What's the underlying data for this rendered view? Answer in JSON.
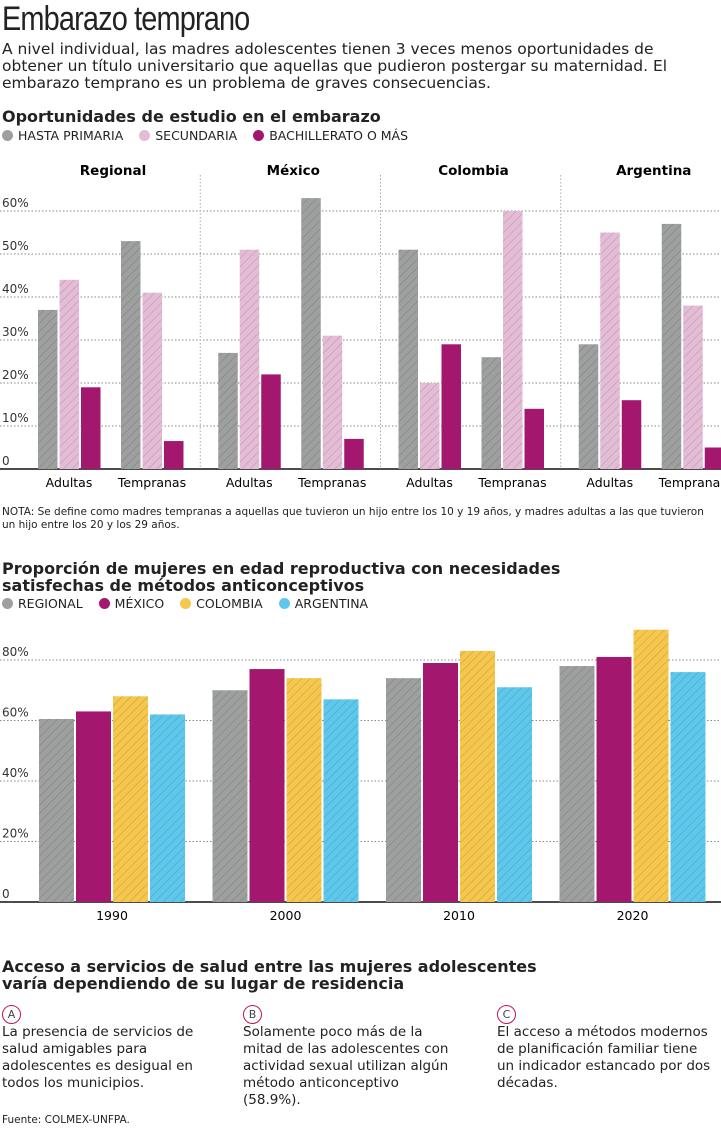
{
  "title": "Embarazo temprano",
  "intro": "A nivel individual, las madres adolescentes tienen 3 veces menos oportunidades de obtener un título universitario que aquellas que pudieron postergar su maternidad. El embarazo temprano es un problema de graves consecuencias.",
  "chart_data": [
    {
      "type": "bar",
      "title": "Oportunidades de estudio en el embarazo",
      "legend": [
        "HASTA PRIMARIA",
        "SECUNDARIA",
        "BACHILLERATO O MÁS"
      ],
      "colors": [
        "#9ea0a0",
        "#e4bcd6",
        "#a3176e"
      ],
      "groups": [
        "Regional",
        "México",
        "Colombia",
        "Argentina"
      ],
      "categories": [
        "Adultas",
        "Tempranas"
      ],
      "yticks": [
        "0",
        "10%",
        "20%",
        "30%",
        "40%",
        "50%",
        "60%"
      ],
      "ylim": [
        0,
        60
      ],
      "values": {
        "Regional": {
          "Adultas": [
            37,
            44,
            19
          ],
          "Tempranas": [
            53,
            41,
            6.5
          ]
        },
        "México": {
          "Adultas": [
            27,
            51,
            22
          ],
          "Tempranas": [
            63,
            31,
            7
          ]
        },
        "Colombia": {
          "Adultas": [
            51,
            20,
            29
          ],
          "Tempranas": [
            26,
            60,
            14
          ]
        },
        "Argentina": {
          "Adultas": [
            29,
            55,
            16
          ],
          "Tempranas": [
            57,
            38,
            5
          ]
        }
      },
      "note": "NOTA: Se define como madres tempranas a aquellas que tuvieron un hijo entre los 10 y 19 años, y madres adultas a las que tuvieron un hijo entre los 20 y los 29 años."
    },
    {
      "type": "bar",
      "title": "Proporción de mujeres en edad reproductiva con necesidades satisfechas de métodos anticonceptivos",
      "categories": [
        "1990",
        "2000",
        "2010",
        "2020"
      ],
      "yticks": [
        "0",
        "20%",
        "40%",
        "60%",
        "80%"
      ],
      "ylim": [
        0,
        80
      ],
      "series": [
        {
          "name": "REGIONAL",
          "color": "#9ea0a0",
          "values": [
            60.5,
            70,
            74,
            78
          ]
        },
        {
          "name": "MÉXICO",
          "color": "#a3176e",
          "values": [
            63,
            77,
            79,
            81
          ]
        },
        {
          "name": "COLOMBIA",
          "color": "#f6c74d",
          "values": [
            68,
            74,
            83,
            90
          ]
        },
        {
          "name": "ARGENTINA",
          "color": "#5ec8ec",
          "values": [
            62,
            67,
            71,
            76
          ]
        }
      ]
    }
  ],
  "access": {
    "title": "Acceso a servicios de salud entre las mujeres adolescentes varía dependiendo de su lugar de residencia",
    "items": [
      {
        "badge": "A",
        "text": "La presencia de servicios de salud amigables para adolescentes es desigual en todos los municipios."
      },
      {
        "badge": "B",
        "text": "Solamente poco más de la mitad de las adolescentes con actividad sexual utilizan algún método anticonceptivo (58.9%)."
      },
      {
        "badge": "C",
        "text": "El acceso a métodos modernos de planificación familiar tiene un indicador estancado por dos décadas."
      }
    ]
  },
  "source": "Fuente: COLMEX-UNFPA."
}
